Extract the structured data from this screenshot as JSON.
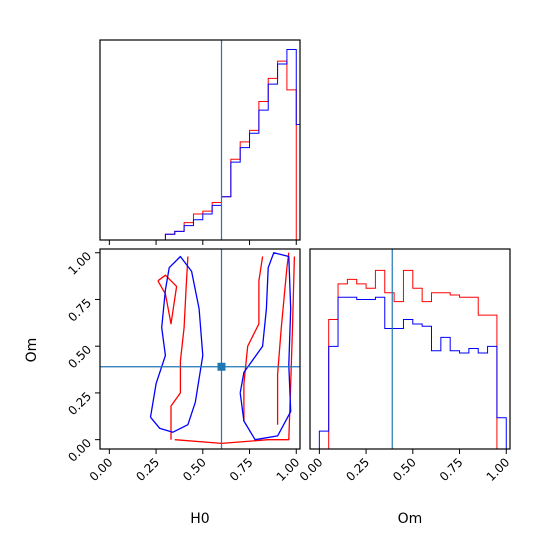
{
  "colors": {
    "series_a": "#ff0000",
    "series_b": "#0000ff",
    "truth": "#1f77b4",
    "frame": "#000000"
  },
  "chart_data": [
    {
      "panel": "H0 marginal",
      "type": "histogram",
      "xlim": [
        -0.05,
        1.02
      ],
      "bins": [
        0.3,
        0.35,
        0.4,
        0.45,
        0.5,
        0.55,
        0.6,
        0.65,
        0.7,
        0.75,
        0.8,
        0.85,
        0.9,
        0.95,
        1.0
      ],
      "series": [
        {
          "color_key": "series_a",
          "values": [
            2,
            3,
            6,
            9,
            10,
            13,
            15,
            28,
            34,
            38,
            48,
            56,
            62,
            52,
            0
          ]
        },
        {
          "color_key": "series_b",
          "values": [
            2,
            3,
            5,
            7,
            9,
            12,
            15,
            27,
            32,
            37,
            45,
            54,
            61,
            66,
            40
          ]
        }
      ],
      "truth_x": 0.6,
      "grid": false
    },
    {
      "panel": "H0 vs Om",
      "type": "contour",
      "xlabel": "H0",
      "ylabel": "Om",
      "xlim": [
        -0.05,
        1.02
      ],
      "ylim": [
        -0.05,
        1.02
      ],
      "xticks": [
        "0.00",
        "0.25",
        "0.50",
        "0.75",
        "1.00"
      ],
      "xtick_values": [
        0,
        0.25,
        0.5,
        0.75,
        1.0
      ],
      "yticks": [
        "0.00",
        "0.25",
        "0.50",
        "0.75",
        "1.00"
      ],
      "ytick_values": [
        0,
        0.25,
        0.5,
        0.75,
        1.0
      ],
      "truth": {
        "x": 0.6,
        "y": 0.39
      },
      "series": [
        {
          "color_key": "series_a",
          "contours": [
            [
              [
                0.33,
                0.0
              ],
              [
                0.33,
                0.18
              ],
              [
                0.38,
                0.25
              ],
              [
                0.38,
                0.42
              ],
              [
                0.4,
                0.6
              ],
              [
                0.41,
                0.8
              ],
              [
                0.42,
                0.98
              ]
            ],
            [
              [
                0.35,
                0.0
              ],
              [
                0.6,
                -0.02
              ],
              [
                0.85,
                0.0
              ],
              [
                0.96,
                0.0
              ],
              [
                0.97,
                0.3
              ],
              [
                0.98,
                0.6
              ],
              [
                0.99,
                0.98
              ]
            ],
            [
              [
                0.72,
                0.1
              ],
              [
                0.72,
                0.3
              ],
              [
                0.74,
                0.5
              ],
              [
                0.8,
                0.62
              ],
              [
                0.8,
                0.85
              ],
              [
                0.82,
                0.98
              ]
            ],
            [
              [
                0.9,
                0.08
              ],
              [
                0.9,
                0.35
              ],
              [
                0.92,
                0.6
              ],
              [
                0.95,
                0.92
              ],
              [
                0.96,
                1.0
              ]
            ],
            [
              [
                0.26,
                0.85
              ],
              [
                0.3,
                0.88
              ],
              [
                0.36,
                0.82
              ],
              [
                0.33,
                0.62
              ],
              [
                0.3,
                0.78
              ],
              [
                0.26,
                0.85
              ]
            ]
          ]
        },
        {
          "color_key": "series_b",
          "contours": [
            [
              [
                0.22,
                0.12
              ],
              [
                0.25,
                0.3
              ],
              [
                0.3,
                0.45
              ],
              [
                0.28,
                0.6
              ],
              [
                0.3,
                0.8
              ],
              [
                0.32,
                0.92
              ],
              [
                0.38,
                0.98
              ],
              [
                0.44,
                0.9
              ],
              [
                0.48,
                0.7
              ],
              [
                0.5,
                0.45
              ],
              [
                0.46,
                0.2
              ],
              [
                0.42,
                0.08
              ],
              [
                0.34,
                0.04
              ],
              [
                0.27,
                0.06
              ],
              [
                0.22,
                0.12
              ]
            ],
            [
              [
                0.7,
                0.25
              ],
              [
                0.72,
                0.36
              ],
              [
                0.82,
                0.5
              ],
              [
                0.84,
                0.7
              ],
              [
                0.85,
                0.92
              ],
              [
                0.88,
                1.0
              ],
              [
                0.96,
                0.98
              ],
              [
                0.97,
                0.7
              ],
              [
                0.96,
                0.4
              ],
              [
                0.97,
                0.15
              ],
              [
                0.9,
                0.02
              ],
              [
                0.78,
                0.0
              ],
              [
                0.72,
                0.1
              ],
              [
                0.7,
                0.25
              ]
            ]
          ]
        }
      ],
      "grid": false
    },
    {
      "panel": "Om marginal",
      "type": "histogram",
      "xlabel": "Om",
      "xlim": [
        -0.05,
        1.02
      ],
      "xticks": [
        "0.00",
        "0.25",
        "0.50",
        "0.75",
        "1.00"
      ],
      "xtick_values": [
        0,
        0.25,
        0.5,
        0.75,
        1.0
      ],
      "bins": [
        0.0,
        0.05,
        0.1,
        0.15,
        0.2,
        0.25,
        0.3,
        0.35,
        0.4,
        0.45,
        0.5,
        0.55,
        0.6,
        0.65,
        0.7,
        0.75,
        0.8,
        0.85,
        0.9,
        0.95
      ],
      "series": [
        {
          "color_key": "series_a",
          "values": [
            0,
            58,
            74,
            76,
            74,
            72,
            80,
            70,
            66,
            80,
            72,
            66,
            70,
            70,
            69,
            68,
            68,
            60,
            60,
            0
          ]
        },
        {
          "color_key": "series_b",
          "values": [
            8,
            46,
            68,
            68,
            67,
            67,
            68,
            54,
            54,
            58,
            56,
            55,
            44,
            50,
            44,
            43,
            45,
            43,
            46,
            14
          ]
        }
      ],
      "truth_x": 0.39,
      "grid": false
    }
  ]
}
